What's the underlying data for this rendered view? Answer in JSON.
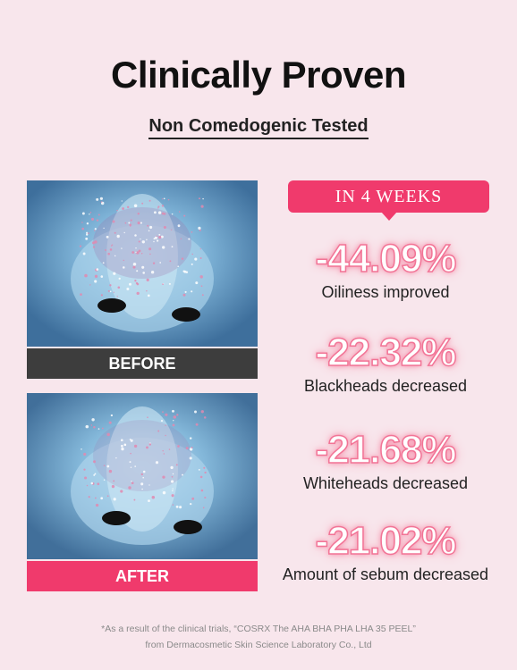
{
  "title": "Clinically Proven",
  "subtitle": "Non Comedogenic Tested",
  "images": {
    "before_label": "BEFORE",
    "after_label": "AFTER"
  },
  "badge": "IN 4 WEEKS",
  "stats": [
    {
      "value": "-44.09%",
      "label": "Oiliness improved"
    },
    {
      "value": "-22.32%",
      "label": "Blackheads decreased"
    },
    {
      "value": "-21.68%",
      "label": "Whiteheads decreased"
    },
    {
      "value": "-21.02%",
      "label": "Amount of sebum decreased"
    }
  ],
  "footnote": {
    "line1": "*As a result of the clinical trials, “COSRX The AHA BHA PHA LHA 35 PEEL”",
    "line2": "from Dermacosmetic Skin Science Laboratory Co., Ltd"
  },
  "colors": {
    "background": "#f8e6ec",
    "accent": "#f03a6c",
    "before_bar": "#3d3d3d",
    "skin_scan": "#6fa2c9"
  }
}
